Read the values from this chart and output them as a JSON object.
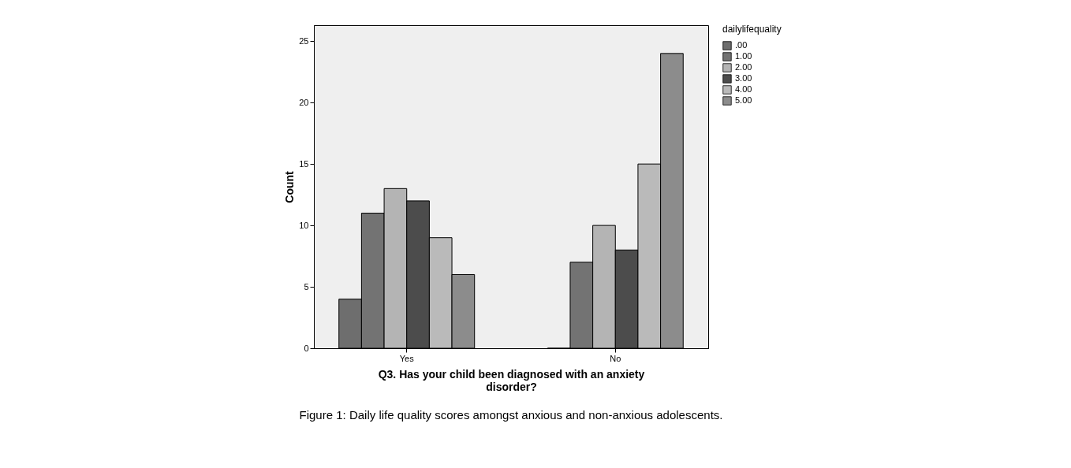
{
  "chart_data": {
    "type": "bar",
    "xlabel": "Q3. Has your child been diagnosed with an anxiety disorder?",
    "ylabel": "Count",
    "legend_title": "dailylifequality",
    "categories": [
      "Yes",
      "No"
    ],
    "series": [
      {
        "name": ".00",
        "color": "#6e6e6e",
        "values": [
          4,
          0
        ]
      },
      {
        "name": "1.00",
        "color": "#737373",
        "values": [
          11,
          7
        ]
      },
      {
        "name": "2.00",
        "color": "#b4b4b4",
        "values": [
          13,
          10
        ]
      },
      {
        "name": "3.00",
        "color": "#4c4c4c",
        "values": [
          12,
          8
        ]
      },
      {
        "name": "4.00",
        "color": "#bababa",
        "values": [
          9,
          15
        ]
      },
      {
        "name": "5.00",
        "color": "#8c8c8c",
        "values": [
          6,
          24
        ]
      }
    ],
    "ylim": [
      0,
      26.3
    ],
    "yticks": [
      0,
      5,
      10,
      15,
      20,
      25
    ],
    "grid": false,
    "legend": "top right",
    "annotations": [
      "Figure 1: Daily life quality scores amongst anxious and non-anxious adolescents."
    ]
  }
}
